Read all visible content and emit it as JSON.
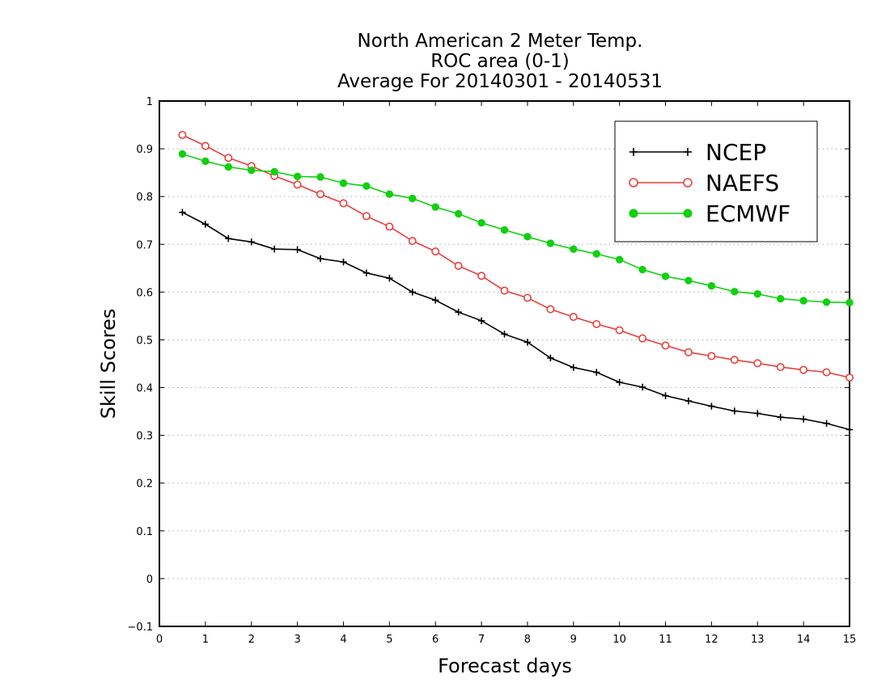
{
  "chart_data": {
    "type": "line",
    "title": [
      "North American 2 Meter Temp.",
      "ROC area (0-1)",
      "Average For 20140301 - 20140531"
    ],
    "xlabel": "Forecast days",
    "ylabel": "Skill Scores",
    "xlim": [
      0,
      15
    ],
    "ylim": [
      -0.1,
      1
    ],
    "xticks": [
      "0",
      "1",
      "2",
      "3",
      "4",
      "5",
      "6",
      "7",
      "8",
      "9",
      "10",
      "11",
      "12",
      "13",
      "14",
      "15"
    ],
    "yticks": [
      "−0.1",
      "0",
      "0.1",
      "0.2",
      "0.3",
      "0.4",
      "0.5",
      "0.6",
      "0.7",
      "0.8",
      "0.9",
      "1"
    ],
    "grid": "horizontal dotted",
    "legend_position": "top-right",
    "x": [
      0.5,
      1,
      1.5,
      2,
      2.5,
      3,
      3.5,
      4,
      4.5,
      5,
      5.5,
      6,
      6.5,
      7,
      7.5,
      8,
      8.5,
      9,
      9.5,
      10,
      10.5,
      11,
      11.5,
      12,
      12.5,
      13,
      13.5,
      14,
      14.5,
      15
    ],
    "series": [
      {
        "name": "NCEP",
        "color": "#000000",
        "marker": "plus",
        "values": [
          0.767,
          0.742,
          0.712,
          0.705,
          0.69,
          0.689,
          0.67,
          0.663,
          0.64,
          0.629,
          0.6,
          0.583,
          0.558,
          0.54,
          0.512,
          0.495,
          0.462,
          0.442,
          0.432,
          0.411,
          0.401,
          0.383,
          0.372,
          0.361,
          0.351,
          0.346,
          0.338,
          0.334,
          0.325,
          0.312
        ]
      },
      {
        "name": "NAEFS",
        "color": "#e8403c",
        "marker": "open-circle",
        "values": [
          0.929,
          0.906,
          0.881,
          0.864,
          0.843,
          0.825,
          0.805,
          0.786,
          0.759,
          0.737,
          0.707,
          0.685,
          0.655,
          0.634,
          0.603,
          0.588,
          0.564,
          0.548,
          0.533,
          0.52,
          0.503,
          0.488,
          0.474,
          0.466,
          0.458,
          0.451,
          0.443,
          0.437,
          0.432,
          0.421
        ]
      },
      {
        "name": "ECMWF",
        "color": "#10d010",
        "marker": "filled-circle",
        "values": [
          0.889,
          0.874,
          0.862,
          0.855,
          0.852,
          0.842,
          0.841,
          0.828,
          0.822,
          0.805,
          0.796,
          0.778,
          0.764,
          0.745,
          0.73,
          0.716,
          0.702,
          0.69,
          0.68,
          0.668,
          0.647,
          0.633,
          0.624,
          0.613,
          0.601,
          0.596,
          0.586,
          0.582,
          0.579,
          0.578
        ]
      }
    ]
  }
}
